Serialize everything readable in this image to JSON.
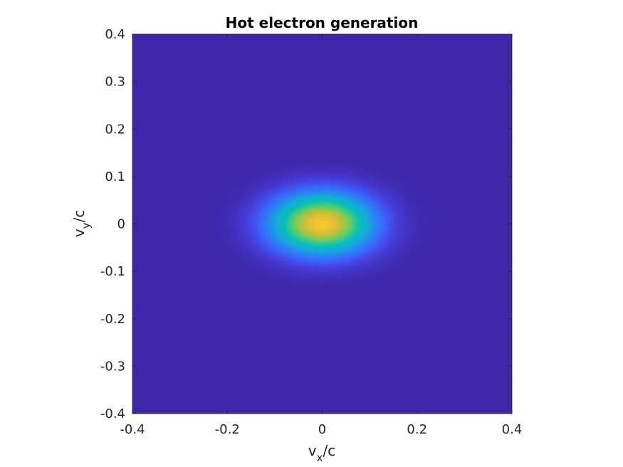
{
  "chart_data": {
    "type": "heatmap",
    "title": "Hot electron generation",
    "xlabel": {
      "main": "v",
      "sub": "x",
      "suffix": "/c"
    },
    "ylabel": {
      "main": "v",
      "sub": "y",
      "suffix": "/c"
    },
    "xlim": [
      -0.4,
      0.4
    ],
    "ylim": [
      -0.4,
      0.4
    ],
    "xticks": [
      -0.4,
      -0.2,
      0,
      0.2,
      0.4
    ],
    "xtick_labels": [
      "-0.4",
      "-0.2",
      "0",
      "0.2",
      "0.4"
    ],
    "yticks": [
      0.4,
      0.3,
      0.2,
      0.1,
      0,
      -0.1,
      -0.2,
      -0.3,
      -0.4
    ],
    "ytick_labels": [
      "0.4",
      "0.3",
      "0.2",
      "0.1",
      "0",
      "-0.1",
      "-0.2",
      "-0.3",
      "-0.4"
    ],
    "colormap": "parula",
    "grid": false,
    "legend": "none",
    "distribution": {
      "shape": "gaussian",
      "center_x": 0.0,
      "center_y": 0.0,
      "sigma_x": 0.075,
      "sigma_y": 0.045
    }
  }
}
